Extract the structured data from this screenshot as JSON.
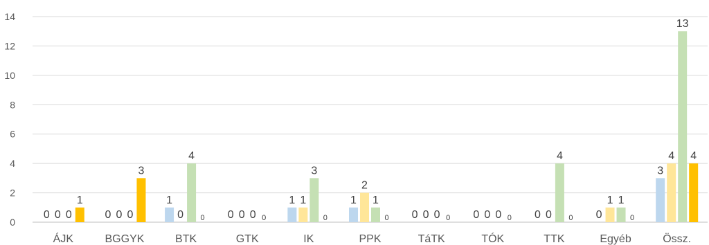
{
  "chart_data": {
    "type": "bar",
    "categories": [
      "ÁJK",
      "BGGYK",
      "BTK",
      "GTK",
      "IK",
      "PPK",
      "TáTK",
      "TÓK",
      "TTK",
      "Egyéb",
      "Össz."
    ],
    "series": [
      {
        "color": "#bdd7ee",
        "values": [
          0,
          0,
          1,
          0,
          1,
          1,
          0,
          0,
          0,
          0,
          3
        ]
      },
      {
        "color": "#ffe699",
        "values": [
          0,
          0,
          0,
          0,
          1,
          2,
          0,
          0,
          0,
          1,
          4
        ]
      },
      {
        "color": "#c5e0b4",
        "values": [
          0,
          0,
          4,
          0,
          3,
          1,
          0,
          0,
          4,
          1,
          13
        ]
      },
      {
        "color": "#ffc000",
        "values": [
          1,
          3,
          0,
          0,
          0,
          0,
          0,
          0,
          0,
          0,
          4
        ]
      }
    ],
    "ylim": [
      0,
      14
    ],
    "yticks": [
      0,
      2,
      4,
      6,
      8,
      10,
      12,
      14
    ],
    "grid": true,
    "legend": "none"
  }
}
